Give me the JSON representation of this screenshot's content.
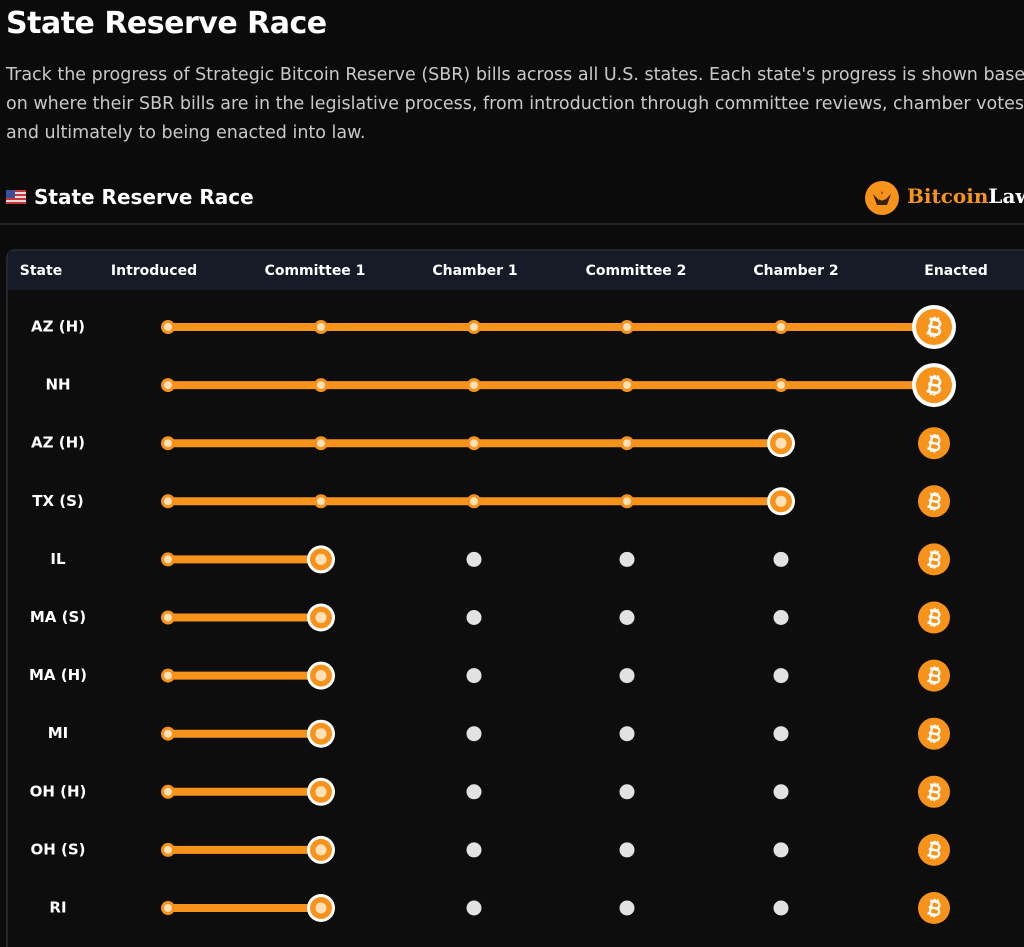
{
  "header": {
    "title": "State Reserve Race",
    "description": "Track the progress of Strategic Bitcoin Reserve (SBR) bills across all U.S. states. Each state's progress is shown based on where their SBR bills are in the legislative process, from introduction through committee reviews, chamber votes, and ultimately to being enacted into law."
  },
  "section": {
    "title": "State Reserve Race",
    "logo": {
      "brand": "Bitcoin",
      "suffix": "Law"
    }
  },
  "table": {
    "columns": [
      "State",
      "Introduced",
      "Committee 1",
      "Chamber 1",
      "Committee 2",
      "Chamber 2",
      "Enacted"
    ],
    "rows": [
      {
        "state": "AZ (H)",
        "stage": 5
      },
      {
        "state": "NH",
        "stage": 5
      },
      {
        "state": "AZ (H)",
        "stage": 4
      },
      {
        "state": "TX (S)",
        "stage": 4
      },
      {
        "state": "IL",
        "stage": 1
      },
      {
        "state": "MA (S)",
        "stage": 1
      },
      {
        "state": "MA (H)",
        "stage": 1
      },
      {
        "state": "MI",
        "stage": 1
      },
      {
        "state": "OH (H)",
        "stage": 1
      },
      {
        "state": "OH (S)",
        "stage": 1
      },
      {
        "state": "RI",
        "stage": 1
      }
    ]
  }
}
